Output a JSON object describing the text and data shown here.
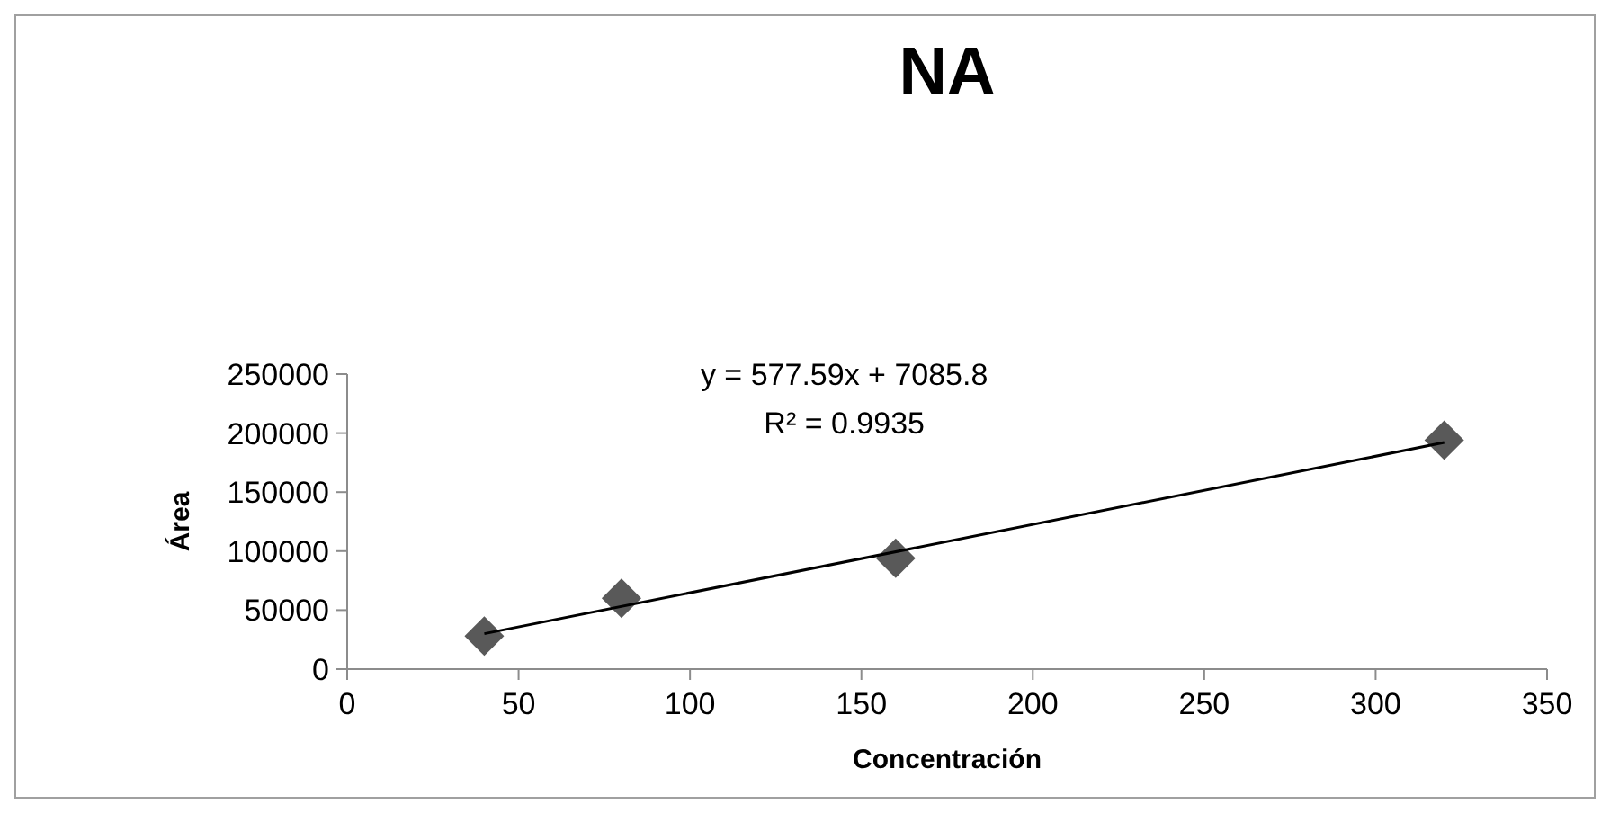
{
  "chart_data": {
    "type": "scatter",
    "title": "NA",
    "xlabel": "Concentración",
    "ylabel": "Área",
    "xlim": [
      0,
      350
    ],
    "xticks": [
      0,
      50,
      100,
      150,
      200,
      250,
      300,
      350
    ],
    "ylim": [
      0,
      250000
    ],
    "yticks": [
      0,
      50000,
      100000,
      150000,
      200000,
      250000
    ],
    "grid": false,
    "series": [
      {
        "color": "#595959",
        "marker": "diamond",
        "x": [
          40,
          80,
          160,
          320
        ],
        "values": [
          28000,
          60000,
          94000,
          194000
        ]
      },
      {
        "type": "line",
        "color": "#000000",
        "x": [
          40,
          320
        ],
        "values": [
          30000,
          192000
        ]
      }
    ],
    "annotations": [
      "y = 577.59x + 7085.8",
      "R² = 0.9935"
    ]
  }
}
